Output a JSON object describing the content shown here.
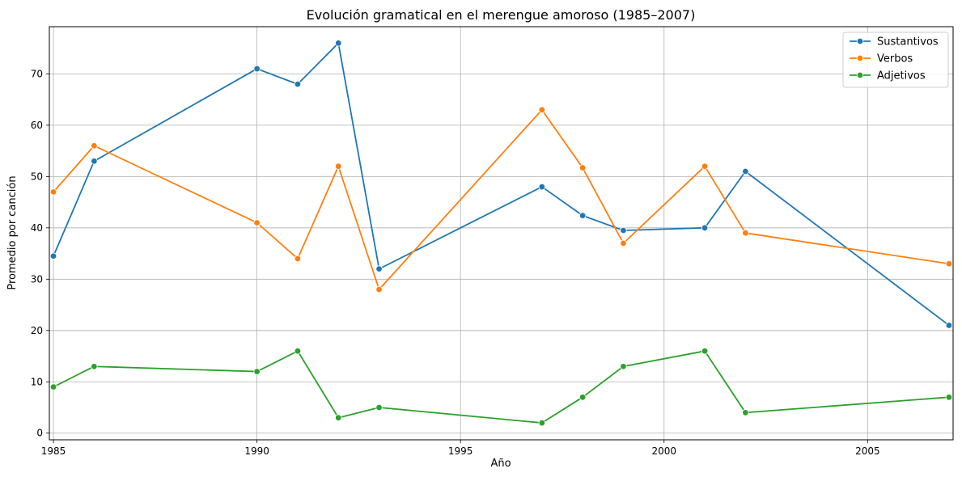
{
  "chart_data": {
    "type": "line",
    "title": "Evolución gramatical en el merengue amoroso (1985–2007)",
    "xlabel": "Año",
    "ylabel": "Promedio por canción",
    "xlim": [
      1984.9,
      2007.1
    ],
    "ylim": [
      -1.3,
      79.2
    ],
    "x_ticks": [
      1985,
      1990,
      1995,
      2000,
      2005
    ],
    "y_ticks": [
      0,
      10,
      20,
      30,
      40,
      50,
      60,
      70
    ],
    "grid": true,
    "legend_position": "top-right",
    "x": [
      1985,
      1986,
      1990,
      1991,
      1992,
      1993,
      1997,
      1998,
      1999,
      2001,
      2002,
      2007
    ],
    "series": [
      {
        "name": "Sustantivos",
        "color": "#1f77b4",
        "values": [
          34.5,
          53,
          71,
          68,
          76,
          32,
          48,
          42.4,
          39.5,
          40,
          51,
          21
        ]
      },
      {
        "name": "Verbos",
        "color": "#ff7f0e",
        "values": [
          47,
          56,
          41,
          34,
          52,
          28,
          63,
          51.7,
          37,
          52,
          39,
          33
        ]
      },
      {
        "name": "Adjetivos",
        "color": "#2ca02c",
        "values": [
          9,
          13,
          12,
          16,
          3,
          5,
          2,
          7,
          13,
          16,
          4,
          7
        ]
      }
    ]
  }
}
